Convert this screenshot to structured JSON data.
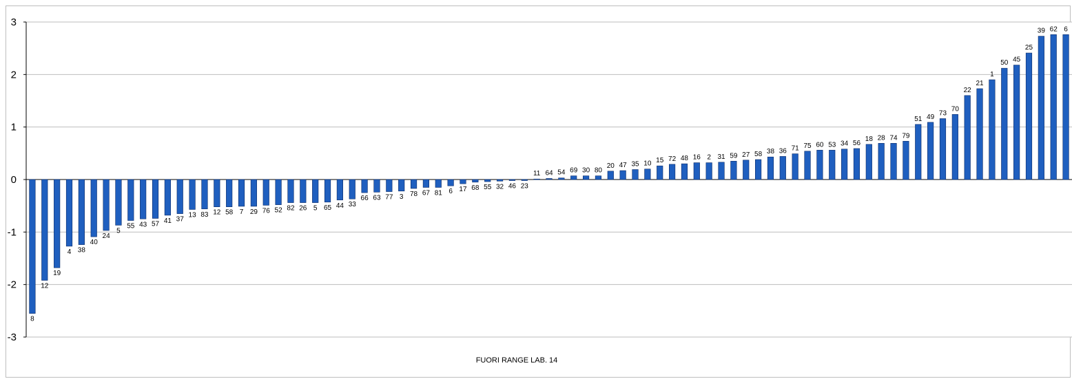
{
  "chart_data": {
    "type": "bar",
    "title": "",
    "xlabel": "FUORI RANGE  LAB. 14",
    "ylabel": "",
    "ylim": [
      -3,
      3
    ],
    "yticks": [
      "3",
      "2",
      "1",
      "0",
      "-1",
      "-2",
      "-3"
    ],
    "grid": true,
    "legend": "none",
    "bar_color": "#1f5fbf",
    "bar_edge_color": "#0a2a66",
    "categories": [
      "8",
      "12",
      "19",
      "4",
      "38",
      "40",
      "24",
      "5",
      "55",
      "43",
      "57",
      "41",
      "37",
      "13",
      "83",
      "12",
      "58",
      "7",
      "29",
      "76",
      "52",
      "82",
      "26",
      "5",
      "65",
      "44",
      "33",
      "66",
      "63",
      "77",
      "3",
      "78",
      "67",
      "81",
      "6",
      "17",
      "68",
      "55",
      "32",
      "46",
      "23",
      "11",
      "64",
      "54",
      "69",
      "30",
      "80",
      "20",
      "47",
      "35",
      "10",
      "15",
      "72",
      "48",
      "16",
      "2",
      "31",
      "59",
      "27",
      "58",
      "38",
      "36",
      "71",
      "75",
      "60",
      "53",
      "34",
      "56",
      "18",
      "28",
      "74",
      "79",
      "51",
      "49",
      "73",
      "70",
      "22",
      "21",
      "1",
      "50",
      "45",
      "25",
      "39",
      "62",
      "6"
    ],
    "values": [
      -2.55,
      -1.92,
      -1.68,
      -1.27,
      -1.24,
      -1.09,
      -0.97,
      -0.87,
      -0.78,
      -0.75,
      -0.74,
      -0.68,
      -0.65,
      -0.57,
      -0.56,
      -0.52,
      -0.52,
      -0.51,
      -0.51,
      -0.49,
      -0.48,
      -0.44,
      -0.44,
      -0.44,
      -0.43,
      -0.39,
      -0.37,
      -0.25,
      -0.24,
      -0.23,
      -0.22,
      -0.17,
      -0.15,
      -0.15,
      -0.12,
      -0.08,
      -0.05,
      -0.04,
      -0.03,
      -0.02,
      -0.02,
      0.01,
      0.02,
      0.03,
      0.07,
      0.07,
      0.07,
      0.16,
      0.17,
      0.19,
      0.2,
      0.26,
      0.29,
      0.3,
      0.32,
      0.32,
      0.33,
      0.35,
      0.37,
      0.38,
      0.43,
      0.44,
      0.49,
      0.54,
      0.56,
      0.56,
      0.58,
      0.59,
      0.67,
      0.69,
      0.69,
      0.73,
      1.05,
      1.09,
      1.16,
      1.24,
      1.6,
      1.73,
      1.9,
      2.12,
      2.18,
      2.41,
      2.73,
      2.76,
      2.76
    ]
  }
}
